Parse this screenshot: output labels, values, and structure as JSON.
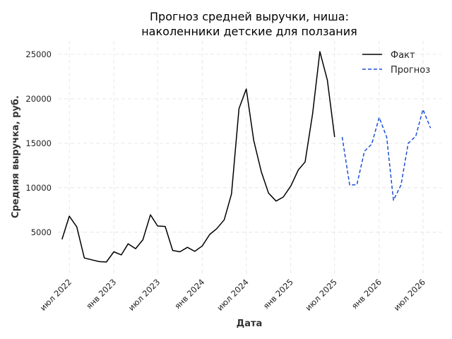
{
  "chart_data": {
    "type": "line",
    "title_lines": [
      "Прогноз средней выручки, ниша:",
      "наколенники детские для ползания"
    ],
    "xlabel": "Дата",
    "ylabel": "Средняя выручка, руб.",
    "ylim": [
      300,
      26500
    ],
    "xlim": [
      "2022-05-15",
      "2026-09-15"
    ],
    "yticks": [
      5000,
      10000,
      15000,
      20000,
      25000
    ],
    "xticks": [
      {
        "date": "2022-07-01",
        "label": "июл 2022"
      },
      {
        "date": "2023-01-01",
        "label": "янв 2023"
      },
      {
        "date": "2023-07-01",
        "label": "июл 2023"
      },
      {
        "date": "2024-01-01",
        "label": "янв 2024"
      },
      {
        "date": "2024-07-01",
        "label": "июл 2024"
      },
      {
        "date": "2025-01-01",
        "label": "янв 2025"
      },
      {
        "date": "2025-07-01",
        "label": "июл 2025"
      },
      {
        "date": "2026-01-01",
        "label": "янв 2026"
      },
      {
        "date": "2026-07-01",
        "label": "июл 2026"
      }
    ],
    "grid": true,
    "legend_position": "top-right",
    "series": [
      {
        "name": "Факт",
        "color": "#000000",
        "style": "solid",
        "x": [
          "2022-06-01",
          "2022-07-01",
          "2022-08-01",
          "2022-09-01",
          "2022-10-01",
          "2022-11-01",
          "2022-12-01",
          "2023-01-01",
          "2023-02-01",
          "2023-03-01",
          "2023-04-01",
          "2023-05-01",
          "2023-06-01",
          "2023-07-01",
          "2023-08-01",
          "2023-09-01",
          "2023-10-01",
          "2023-11-01",
          "2023-12-01",
          "2024-01-01",
          "2024-02-01",
          "2024-03-01",
          "2024-04-01",
          "2024-05-01",
          "2024-06-01",
          "2024-07-01",
          "2024-08-01",
          "2024-09-01",
          "2024-10-01",
          "2024-11-01",
          "2024-12-01",
          "2025-01-01",
          "2025-02-01",
          "2025-03-01",
          "2025-04-01",
          "2025-05-01",
          "2025-06-01",
          "2025-07-01",
          "2025-08-01"
        ],
        "values": [
          4200,
          6800,
          5600,
          2100,
          1900,
          1700,
          1650,
          2800,
          2450,
          3700,
          3150,
          4150,
          6950,
          5700,
          5650,
          2950,
          2800,
          3300,
          2850,
          3450,
          4750,
          5400,
          6400,
          9300,
          18900,
          21100,
          15300,
          11800,
          9400,
          8500,
          8950,
          10200,
          12000,
          12900,
          18300,
          25300,
          22100,
          15700,
          null
        ]
      },
      {
        "name": "Прогноз",
        "color": "#1a4fd6",
        "style": "dashed",
        "x": [
          "2025-08-01",
          "2025-09-01",
          "2025-10-01",
          "2025-11-01",
          "2025-12-01",
          "2026-01-01",
          "2026-02-01",
          "2026-03-01",
          "2026-04-01",
          "2026-05-01",
          "2026-06-01",
          "2026-07-01",
          "2026-08-01"
        ],
        "values": [
          15700,
          10300,
          10350,
          14100,
          14900,
          17900,
          15700,
          8600,
          10300,
          15000,
          15800,
          18800,
          16700
        ]
      }
    ]
  }
}
